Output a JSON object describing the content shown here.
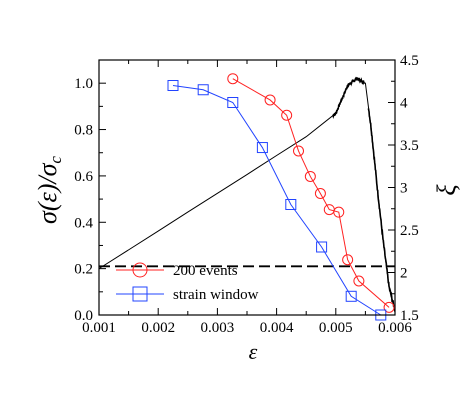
{
  "chart_data": {
    "type": "line",
    "xlabel": "ε",
    "ylabel_left_main": "σ(ε)/σ",
    "ylabel_left_sub": "c",
    "ylabel_right": "ξ",
    "xlim": [
      0.001,
      0.006
    ],
    "ylim": [
      0.0,
      1.1
    ],
    "y2lim": [
      1.5,
      4.5
    ],
    "x_ticks": [
      0.001,
      0.002,
      0.003,
      0.004,
      0.005,
      0.006
    ],
    "x_tick_labels": [
      "0.001",
      "0.002",
      "0.003",
      "0.004",
      "0.005",
      "0.006"
    ],
    "y_ticks": [
      0.0,
      0.2,
      0.4,
      0.6,
      0.8,
      1.0
    ],
    "y_tick_labels": [
      "0.0",
      "0.2",
      "0.4",
      "0.6",
      "0.8",
      "1.0"
    ],
    "y2_ticks": [
      1.5,
      2.0,
      2.5,
      3.0,
      3.5,
      4.0,
      4.5
    ],
    "y2_tick_labels": [
      "1.5",
      "2",
      "2.5",
      "3",
      "3.5",
      "4",
      "4.5"
    ],
    "stress_strain_curve": {
      "x": [
        0.001,
        0.0015,
        0.002,
        0.0025,
        0.003,
        0.0035,
        0.004,
        0.0045,
        0.005,
        0.0052,
        0.00535,
        0.0055,
        0.0056,
        0.0057,
        0.0058,
        0.0059,
        0.006
      ],
      "y": [
        0.2,
        0.281,
        0.362,
        0.444,
        0.525,
        0.606,
        0.688,
        0.769,
        0.87,
        0.99,
        1.02,
        1.0,
        0.8,
        0.55,
        0.32,
        0.12,
        0.02
      ]
    },
    "dashed_line": {
      "y": 0.21
    },
    "series": [
      {
        "name": "200 events",
        "marker": "circle",
        "color": "#ff2222",
        "x": [
          0.00326,
          0.00389,
          0.00417,
          0.00437,
          0.00457,
          0.00474,
          0.00489,
          0.00505,
          0.0052,
          0.00539,
          0.0059
        ],
        "y": [
          4.28,
          4.03,
          3.85,
          3.43,
          3.13,
          2.93,
          2.74,
          2.71,
          2.15,
          1.9,
          1.59
        ]
      },
      {
        "name": "strain window",
        "marker": "square",
        "color": "#2244ff",
        "x": [
          0.00225,
          0.00276,
          0.00326,
          0.00376,
          0.00424,
          0.00476,
          0.00526,
          0.00576
        ],
        "y": [
          4.2,
          4.15,
          4.0,
          3.47,
          2.8,
          2.3,
          1.72,
          1.5
        ]
      }
    ],
    "legend": {
      "placement": "bottom-left",
      "entries": [
        "200 events",
        "strain window"
      ]
    }
  }
}
